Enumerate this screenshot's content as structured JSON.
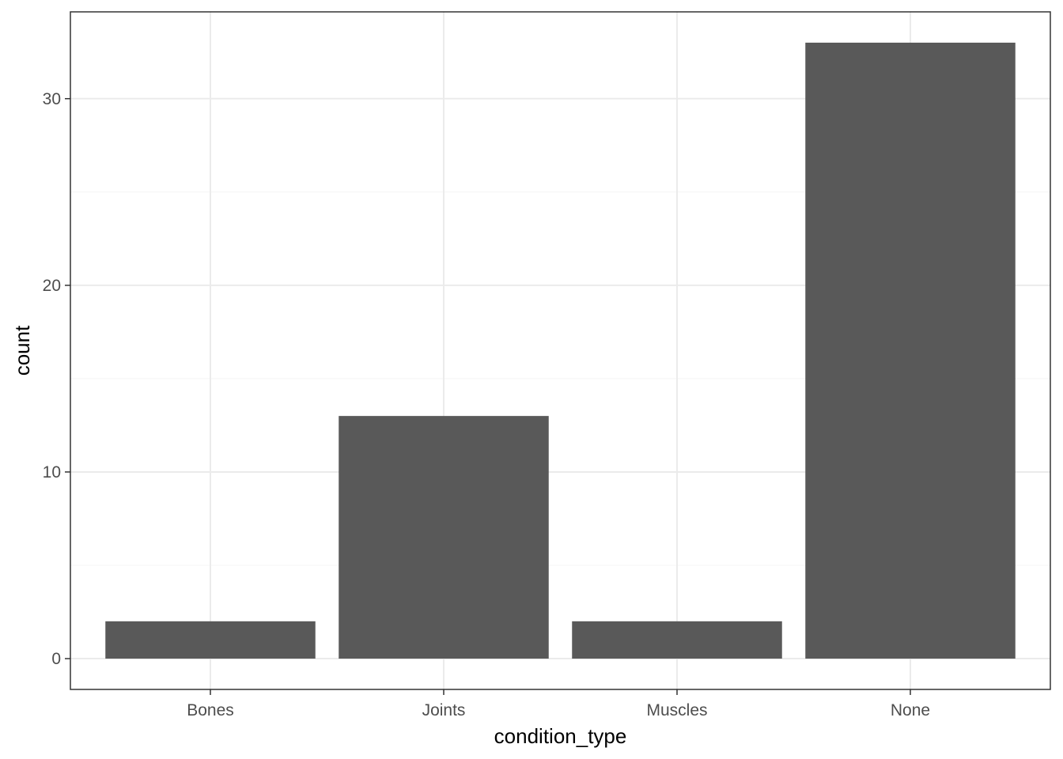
{
  "chart_data": {
    "type": "bar",
    "title": "",
    "xlabel": "condition_type",
    "ylabel": "count",
    "categories": [
      "Bones",
      "Joints",
      "Muscles",
      "None"
    ],
    "values": [
      2,
      13,
      2,
      33
    ],
    "ylim": [
      -1.65,
      34.65
    ],
    "y_ticks": [
      0,
      10,
      20,
      30
    ],
    "y_minor_ticks": [
      5,
      15,
      25
    ],
    "grid": true,
    "legend": "none",
    "colors": {
      "bar": "#595959",
      "grid_major": "#ebebeb",
      "grid_minor": "#f5f5f5",
      "panel_border": "#333333",
      "axis_tick": "#333333",
      "tick_text": "#4d4d4d",
      "title_text": "#000000",
      "background": "#ffffff"
    }
  }
}
